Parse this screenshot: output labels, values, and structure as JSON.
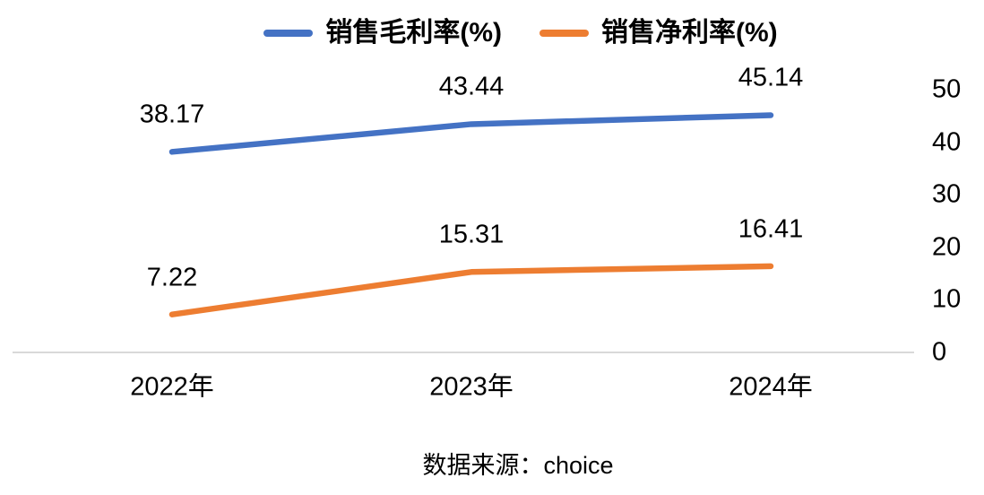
{
  "chart_data": {
    "type": "line",
    "categories": [
      "2022年",
      "2023年",
      "2024年"
    ],
    "series": [
      {
        "name": "销售毛利率(%)",
        "color": "#4472C4",
        "values": [
          38.17,
          43.44,
          45.14
        ]
      },
      {
        "name": "销售净利率(%)",
        "color": "#ED7D31",
        "values": [
          7.22,
          15.31,
          16.41
        ]
      }
    ],
    "data_labels": [
      [
        "38.17",
        "43.44",
        "45.14"
      ],
      [
        "7.22",
        "15.31",
        "16.41"
      ]
    ],
    "ylim": [
      0,
      50
    ],
    "yticks": [
      0,
      10,
      20,
      30,
      40,
      50
    ],
    "y_axis_side": "right",
    "legend_position": "top",
    "grid": false,
    "axis_line_color": "#D9D9D9",
    "source_note": "数据来源：choice"
  }
}
